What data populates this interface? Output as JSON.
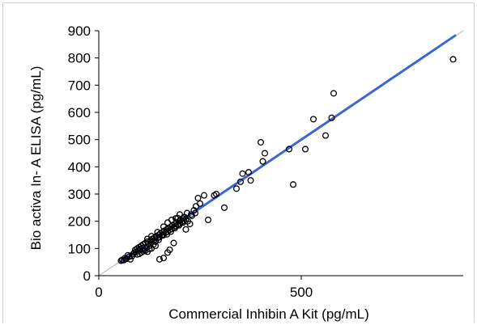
{
  "chart_data": {
    "type": "scatter",
    "xlabel": "Commercial Inhibin A Kit (pg/mL)",
    "ylabel": "Bio activa In- A ELISA  (pg/mL)",
    "xlim": [
      0,
      900
    ],
    "ylim": [
      0,
      900
    ],
    "xticks": [
      "0",
      "500"
    ],
    "xtick_values": [
      0,
      500
    ],
    "yticks": [
      "0",
      "100",
      "200",
      "300",
      "400",
      "500",
      "600",
      "700",
      "800",
      "900"
    ],
    "ytick_values": [
      0,
      100,
      200,
      300,
      400,
      500,
      600,
      700,
      800,
      900
    ],
    "grid": false,
    "legend": "none",
    "identity_line": {
      "from": [
        0,
        0
      ],
      "to": [
        900,
        900
      ],
      "color": "#c0c0c0"
    },
    "fit_line": {
      "from": [
        55,
        52
      ],
      "to": [
        880,
        882
      ],
      "color": "#3a66d6"
    },
    "marker_color": "#000000",
    "points": [
      [
        55,
        55
      ],
      [
        58,
        58
      ],
      [
        62,
        57
      ],
      [
        68,
        62
      ],
      [
        75,
        70
      ],
      [
        78,
        60
      ],
      [
        82,
        72
      ],
      [
        85,
        80
      ],
      [
        88,
        85
      ],
      [
        90,
        95
      ],
      [
        92,
        88
      ],
      [
        95,
        100
      ],
      [
        98,
        92
      ],
      [
        100,
        105
      ],
      [
        102,
        98
      ],
      [
        105,
        110
      ],
      [
        108,
        102
      ],
      [
        110,
        115
      ],
      [
        112,
        95
      ],
      [
        115,
        120
      ],
      [
        118,
        105
      ],
      [
        120,
        125
      ],
      [
        122,
        118
      ],
      [
        125,
        110
      ],
      [
        128,
        130
      ],
      [
        130,
        122
      ],
      [
        132,
        135
      ],
      [
        135,
        128
      ],
      [
        138,
        140
      ],
      [
        140,
        125
      ],
      [
        142,
        145
      ],
      [
        145,
        138
      ],
      [
        148,
        150
      ],
      [
        150,
        142
      ],
      [
        152,
        155
      ],
      [
        155,
        148
      ],
      [
        158,
        160
      ],
      [
        160,
        150
      ],
      [
        162,
        165
      ],
      [
        165,
        158
      ],
      [
        168,
        170
      ],
      [
        170,
        162
      ],
      [
        172,
        175
      ],
      [
        175,
        168
      ],
      [
        178,
        180
      ],
      [
        180,
        172
      ],
      [
        182,
        185
      ],
      [
        185,
        178
      ],
      [
        188,
        190
      ],
      [
        190,
        182
      ],
      [
        192,
        195
      ],
      [
        195,
        188
      ],
      [
        198,
        200
      ],
      [
        200,
        192
      ],
      [
        202,
        205
      ],
      [
        205,
        198
      ],
      [
        208,
        210
      ],
      [
        210,
        202
      ],
      [
        212,
        215
      ],
      [
        215,
        208
      ],
      [
        100,
        80
      ],
      [
        110,
        90
      ],
      [
        120,
        88
      ],
      [
        130,
        100
      ],
      [
        140,
        110
      ],
      [
        150,
        60
      ],
      [
        160,
        65
      ],
      [
        170,
        85
      ],
      [
        175,
        95
      ],
      [
        185,
        120
      ],
      [
        120,
        135
      ],
      [
        130,
        145
      ],
      [
        145,
        160
      ],
      [
        160,
        180
      ],
      [
        170,
        195
      ],
      [
        180,
        205
      ],
      [
        190,
        210
      ],
      [
        200,
        225
      ],
      [
        210,
        215
      ],
      [
        220,
        200
      ],
      [
        230,
        220
      ],
      [
        235,
        240
      ],
      [
        240,
        255
      ],
      [
        245,
        285
      ],
      [
        250,
        265
      ],
      [
        260,
        295
      ],
      [
        270,
        205
      ],
      [
        285,
        295
      ],
      [
        290,
        300
      ],
      [
        310,
        250
      ],
      [
        340,
        320
      ],
      [
        350,
        345
      ],
      [
        355,
        375
      ],
      [
        370,
        380
      ],
      [
        375,
        350
      ],
      [
        400,
        490
      ],
      [
        405,
        420
      ],
      [
        410,
        450
      ],
      [
        470,
        465
      ],
      [
        480,
        335
      ],
      [
        510,
        465
      ],
      [
        530,
        575
      ],
      [
        560,
        515
      ],
      [
        575,
        580
      ],
      [
        580,
        670
      ],
      [
        875,
        795
      ],
      [
        65,
        65
      ],
      [
        72,
        75
      ],
      [
        95,
        78
      ],
      [
        105,
        85
      ],
      [
        115,
        92
      ],
      [
        125,
        98
      ],
      [
        135,
        115
      ],
      [
        148,
        132
      ],
      [
        158,
        148
      ],
      [
        168,
        152
      ],
      [
        178,
        162
      ],
      [
        188,
        175
      ],
      [
        198,
        185
      ],
      [
        208,
        195
      ],
      [
        218,
        230
      ],
      [
        228,
        225
      ],
      [
        238,
        230
      ],
      [
        215,
        170
      ],
      [
        225,
        190
      ],
      [
        195,
        212
      ]
    ]
  }
}
